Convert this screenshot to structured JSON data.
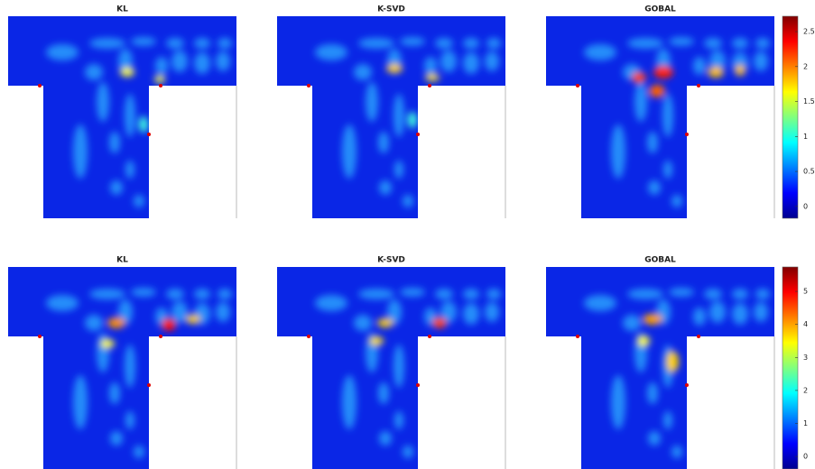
{
  "chart_data": [
    {
      "type": "field",
      "titles": [
        "KL",
        "K-SVD",
        "GOBAL"
      ],
      "colorbar": {
        "ylim": [
          -0.17,
          2.72
        ],
        "yticks": [
          0,
          0.5,
          1,
          1.5,
          2,
          2.5
        ]
      }
    },
    {
      "type": "field",
      "titles": [
        "KL",
        "K-SVD",
        "GOBAL"
      ],
      "colorbar": {
        "ylim": [
          -0.38,
          5.74
        ],
        "yticks": [
          0,
          1,
          2,
          3,
          4,
          5
        ]
      }
    }
  ]
}
